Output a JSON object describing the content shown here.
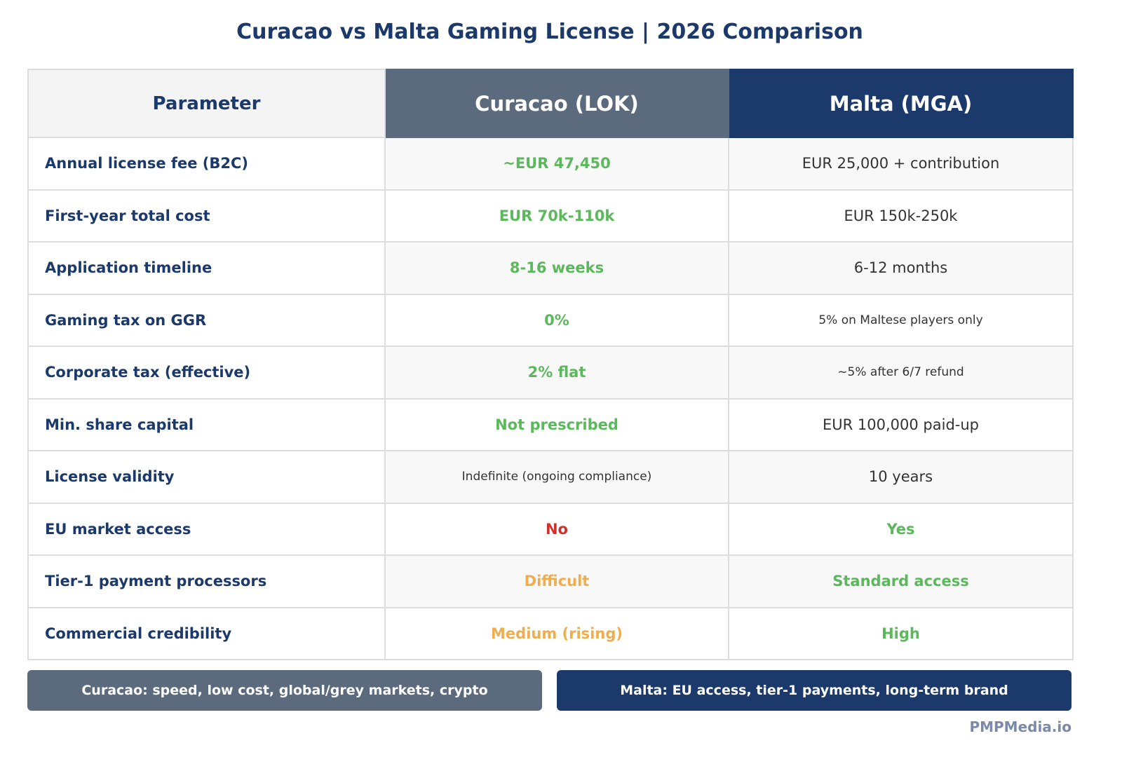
{
  "title": "Curacao vs Malta Gaming License | 2026 Comparison",
  "headers": [
    "Parameter",
    "Curacao (LOK)",
    "Malta (MGA)"
  ],
  "rows": [
    {
      "label": "Annual license fee (B2C)",
      "curacao": "~EUR 47,450",
      "curacao_status": "good",
      "malta": "EUR 25,000 + contribution",
      "malta_status": "neutral"
    },
    {
      "label": "First-year total cost",
      "curacao": "EUR 70k-110k",
      "curacao_status": "good",
      "malta": "EUR 150k-250k",
      "malta_status": "neutral"
    },
    {
      "label": "Application timeline",
      "curacao": "8-16 weeks",
      "curacao_status": "good",
      "malta": "6-12 months",
      "malta_status": "neutral"
    },
    {
      "label": "Gaming tax on GGR",
      "curacao": "0%",
      "curacao_status": "good",
      "malta": "5% on Maltese players only",
      "malta_status": "neutral-small"
    },
    {
      "label": "Corporate tax (effective)",
      "curacao": "2% flat",
      "curacao_status": "good",
      "malta": "~5% after 6/7 refund",
      "malta_status": "neutral-small"
    },
    {
      "label": "Min. share capital",
      "curacao": "Not prescribed",
      "curacao_status": "good",
      "malta": "EUR 100,000 paid-up",
      "malta_status": "neutral"
    },
    {
      "label": "License validity",
      "curacao": "Indefinite (ongoing compliance)",
      "curacao_status": "neutral-small",
      "malta": "10 years",
      "malta_status": "neutral"
    },
    {
      "label": "EU market access",
      "curacao": "No",
      "curacao_status": "bad",
      "malta": "Yes",
      "malta_status": "good"
    },
    {
      "label": "Tier-1 payment processors",
      "curacao": "Difficult",
      "curacao_status": "warn",
      "malta": "Standard access",
      "malta_status": "good"
    },
    {
      "label": "Commercial credibility",
      "curacao": "Medium (rising)",
      "curacao_status": "warn",
      "malta": "High",
      "malta_status": "good"
    }
  ],
  "summary": {
    "curacao": "Curacao: speed, low cost, global/grey markets, crypto",
    "malta": "Malta: EU access, tier-1 payments, long-term brand"
  },
  "watermark": "PMPMedia.io",
  "colors": {
    "navy": "#1b3a6b",
    "slate": "#5b6b7d",
    "good": "#5cb85c",
    "bad": "#d0312d",
    "warn": "#f0ad4e"
  }
}
